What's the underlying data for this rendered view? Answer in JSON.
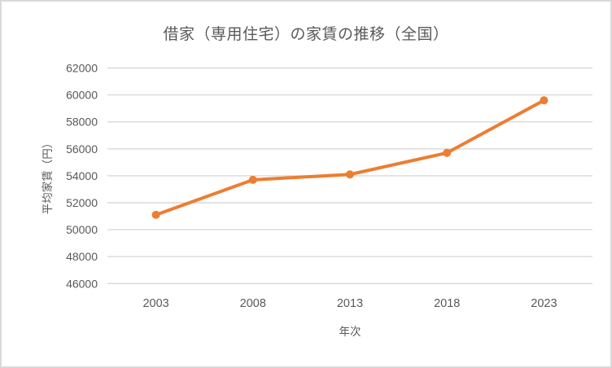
{
  "chart": {
    "title": "借家（専用住宅）の家賃の推移（全国）",
    "y_axis_title": "平均家賃（円）",
    "x_axis_title": "年次"
  },
  "chart_data": {
    "type": "line",
    "title": "借家（専用住宅）の家賃の推移（全国）",
    "xlabel": "年次",
    "ylabel": "平均家賃（円）",
    "categories": [
      "2003",
      "2008",
      "2013",
      "2018",
      "2023"
    ],
    "series": [
      {
        "name": "平均家賃",
        "values": [
          51100,
          53700,
          54100,
          55700,
          59600
        ]
      }
    ],
    "ylim": [
      46000,
      62000
    ],
    "ytick_step": 2000,
    "ytick_labels": [
      "46000",
      "48000",
      "50000",
      "52000",
      "54000",
      "56000",
      "58000",
      "60000",
      "62000"
    ],
    "grid": true,
    "legend": false,
    "marker": "circle",
    "colors": {
      "line": "#ED7D31",
      "marker": "#ED7D31",
      "gridline": "#D9D9D9",
      "text": "#595959",
      "frame_border": "#D9D9D9",
      "background": "#FFFFFF"
    }
  }
}
